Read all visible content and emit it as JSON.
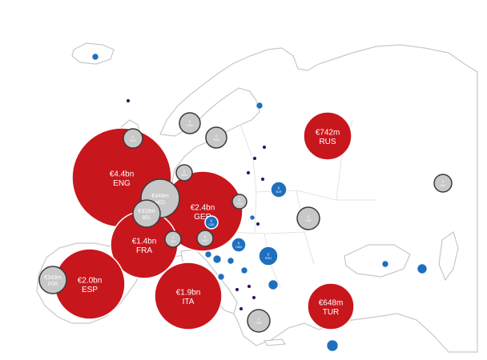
{
  "bubbles": [
    {
      "id": "eng",
      "value": "€4.4bn",
      "code": "ENG",
      "color": "#c8161d",
      "size": "large"
    },
    {
      "id": "ger",
      "value": "€2.4bn",
      "code": "GER",
      "color": "#c8161d",
      "size": "large"
    },
    {
      "id": "fra",
      "value": "€1.4bn",
      "code": "FRA",
      "color": "#c8161d",
      "size": "large"
    },
    {
      "id": "esp",
      "value": "€2.0bn",
      "code": "ESP",
      "color": "#c8161d",
      "size": "large"
    },
    {
      "id": "ita",
      "value": "€1.9bn",
      "code": "ITA",
      "color": "#c8161d",
      "size": "large"
    },
    {
      "id": "rus",
      "value": "€742m",
      "code": "RUS",
      "color": "#c8161d",
      "size": "large"
    },
    {
      "id": "tur",
      "value": "€648m",
      "code": "TUR",
      "color": "#c8161d",
      "size": "large"
    },
    {
      "id": "ned",
      "value": "€448m",
      "code": "NED",
      "color": "#c8c8c8",
      "size": "medium"
    },
    {
      "id": "bel",
      "value": "€316m",
      "code": "BEL",
      "color": "#c8c8c8",
      "size": "medium"
    },
    {
      "id": "por",
      "value": "€343m",
      "code": "POR",
      "color": "#c8c8c8",
      "size": "medium"
    },
    {
      "id": "sco",
      "value": "€",
      "code": "SCO",
      "color": "#c8c8c8",
      "size": "small"
    },
    {
      "id": "den",
      "value": "€",
      "code": "DEN",
      "color": "#c8c8c8",
      "size": "small"
    },
    {
      "id": "nor",
      "value": "€",
      "code": "NOR",
      "color": "#c8c8c8",
      "size": "small"
    },
    {
      "id": "swe",
      "value": "€",
      "code": "SWE",
      "color": "#c8c8c8",
      "size": "small"
    },
    {
      "id": "pol",
      "value": "€",
      "code": "POL",
      "color": "#c8c8c8",
      "size": "small"
    },
    {
      "id": "sui",
      "value": "€",
      "code": "SUI",
      "color": "#c8c8c8",
      "size": "small"
    },
    {
      "id": "aut",
      "value": "€",
      "code": "AUT",
      "color": "#c8c8c8",
      "size": "small"
    },
    {
      "id": "ukr",
      "value": "€",
      "code": "UKR",
      "color": "#c8c8c8",
      "size": "small"
    },
    {
      "id": "gre",
      "value": "€",
      "code": "GRE",
      "color": "#c8c8c8",
      "size": "small"
    },
    {
      "id": "kaz",
      "value": "€",
      "code": "KAZ",
      "color": "#c8c8c8",
      "size": "small"
    },
    {
      "id": "blr",
      "value": "€",
      "code": "BLR",
      "color": "#1e6fbe",
      "size": "small"
    },
    {
      "id": "cze",
      "value": "€",
      "code": "CZE",
      "color": "#1e6fbe",
      "size": "small"
    },
    {
      "id": "hun",
      "value": "€",
      "code": "HUN",
      "color": "#1e6fbe",
      "size": "small"
    },
    {
      "id": "rou",
      "value": "€",
      "code": "ROU",
      "color": "#1e6fbe",
      "size": "small"
    }
  ],
  "colors": {
    "red_bubble": "#c8161d",
    "grey_bubble": "#c8c8c8",
    "blue_bubble": "#1e6fbe",
    "purple_dot": "#3b1361",
    "map_outline": "#c8c8c8"
  }
}
